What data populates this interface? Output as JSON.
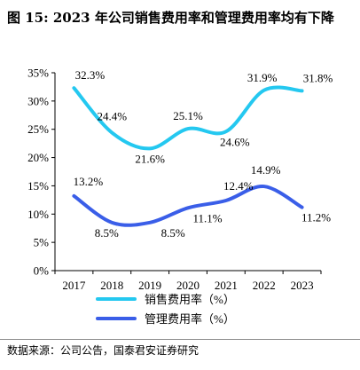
{
  "figure": {
    "title": "图 15:  2023 年公司销售费用率和管理费用率均有下降",
    "source": "数据来源：公司公告，国泰君安证券研究"
  },
  "chart_data": {
    "type": "line",
    "categories": [
      "2017",
      "2018",
      "2019",
      "2020",
      "2021",
      "2022",
      "2023"
    ],
    "y_ticks": [
      "0%",
      "5%",
      "10%",
      "15%",
      "20%",
      "25%",
      "30%",
      "35%"
    ],
    "ylim": [
      0,
      35
    ],
    "grid": false,
    "legend_position": "bottom",
    "series": [
      {
        "name": "销售费用率（%）",
        "color": "#24c8f0",
        "values": [
          32.3,
          24.4,
          21.6,
          25.1,
          24.6,
          31.9,
          31.8
        ],
        "labels": [
          "32.3%",
          "24.4%",
          "21.6%",
          "25.1%",
          "24.6%",
          "31.9%",
          "31.8%"
        ]
      },
      {
        "name": "管理费用率（%）",
        "color": "#3a5ee8",
        "values": [
          13.2,
          8.5,
          8.5,
          11.1,
          12.4,
          14.9,
          11.2
        ],
        "labels": [
          "13.2%",
          "8.5%",
          "8.5%",
          "11.1%",
          "12.4%",
          "14.9%",
          "11.2%"
        ]
      }
    ]
  }
}
